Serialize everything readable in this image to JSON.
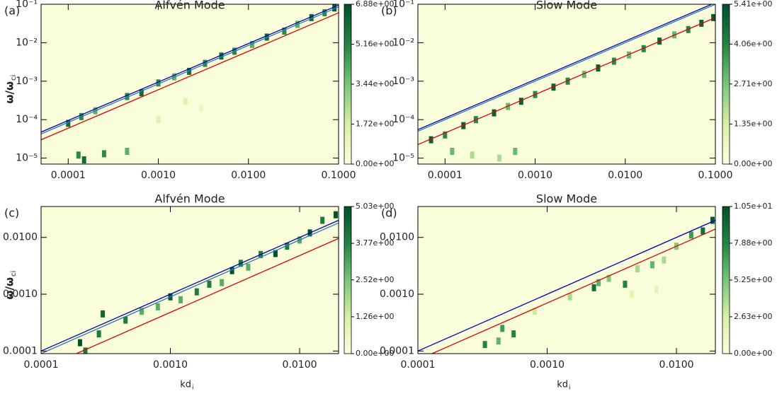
{
  "chart_data": [
    {
      "type": "heatmap",
      "panel": "(a)",
      "title": "Alfvén Mode",
      "ylabel": {
        "text": "ω/ω",
        "sub": "ci"
      },
      "xscale": "log",
      "yscale": "log",
      "xlim": [
        5e-05,
        0.1
      ],
      "ylim": [
        7e-06,
        0.1
      ],
      "xticks": [
        {
          "value": 0.0001,
          "label": "0.0001"
        },
        {
          "value": 0.001,
          "label": "0.0010"
        },
        {
          "value": 0.01,
          "label": "0.0100"
        },
        {
          "value": 0.1,
          "label": "0.1000"
        }
      ],
      "yticks": [
        {
          "value": 1e-05,
          "label": "10⁻⁵"
        },
        {
          "value": 0.0001,
          "label": "10⁻⁴"
        },
        {
          "value": 0.001,
          "label": "10⁻³"
        },
        {
          "value": 0.01,
          "label": "10⁻²"
        },
        {
          "value": 0.1,
          "label": "10⁻¹"
        }
      ],
      "clim": [
        0,
        6.88
      ],
      "cticks": [
        {
          "value": 0,
          "label": "0.00e+00"
        },
        {
          "value": 1.72,
          "label": "1.72e+00"
        },
        {
          "value": 3.44,
          "label": "3.44e+00"
        },
        {
          "value": 5.16,
          "label": "5.16e+00"
        },
        {
          "value": 6.88,
          "label": "6.88e+00"
        }
      ],
      "colormap": [
        "#ffffe0",
        "#d9f0a3",
        "#78c679",
        "#238443",
        "#00502a"
      ],
      "cells": {
        "x": [
          0.0001,
          0.00014,
          0.0002,
          0.00045,
          0.00065,
          0.001,
          0.0015,
          0.0022,
          0.0033,
          0.005,
          0.007,
          0.011,
          0.016,
          0.025,
          0.035,
          0.05,
          0.07,
          0.09,
          0.00013,
          0.00015,
          0.00025,
          0.00045,
          0.002,
          0.001,
          0.003
        ],
        "y": [
          8e-05,
          0.00012,
          0.00017,
          0.0004,
          0.0005,
          0.0009,
          0.0013,
          0.0018,
          0.0029,
          0.0045,
          0.006,
          0.009,
          0.014,
          0.02,
          0.03,
          0.045,
          0.06,
          0.08,
          1.2e-05,
          9e-06,
          1.3e-05,
          1.5e-05,
          0.0003,
          0.0001,
          0.0002
        ],
        "values": [
          6,
          5,
          4,
          5,
          6,
          5,
          4,
          6,
          5,
          6,
          5,
          4,
          6,
          5,
          4,
          6,
          5,
          6.5,
          5,
          6,
          5,
          4,
          1.5,
          1.5,
          1
        ]
      },
      "series": [
        {
          "color": "#0000c0",
          "x": [
            5e-05,
            0.1
          ],
          "values": [
            4.75e-05,
            0.095
          ]
        },
        {
          "color": "#2a7ab0",
          "x": [
            5e-05,
            0.1
          ],
          "values": [
            4.25e-05,
            0.085
          ]
        },
        {
          "color": "#e00000",
          "x": [
            5e-05,
            0.1
          ],
          "values": [
            3e-05,
            0.06
          ]
        }
      ]
    },
    {
      "type": "heatmap",
      "panel": "(b)",
      "title": "Slow Mode",
      "xscale": "log",
      "yscale": "log",
      "xlim": [
        5e-05,
        0.1
      ],
      "ylim": [
        7e-06,
        0.1
      ],
      "xticks": [
        {
          "value": 0.0001,
          "label": "0.0001"
        },
        {
          "value": 0.001,
          "label": "0.0010"
        },
        {
          "value": 0.01,
          "label": "0.0100"
        },
        {
          "value": 0.1,
          "label": "0.1000"
        }
      ],
      "yticks": [
        {
          "value": 1e-05,
          "label": "10⁻⁵"
        },
        {
          "value": 0.0001,
          "label": "10⁻⁴"
        },
        {
          "value": 0.001,
          "label": "10⁻³"
        },
        {
          "value": 0.01,
          "label": "10⁻²"
        },
        {
          "value": 0.1,
          "label": "10⁻¹"
        }
      ],
      "clim": [
        0,
        5.41
      ],
      "cticks": [
        {
          "value": 0,
          "label": "0.00e+00"
        },
        {
          "value": 1.35,
          "label": "1.35e+00"
        },
        {
          "value": 2.71,
          "label": "2.71e+00"
        },
        {
          "value": 4.06,
          "label": "4.06e+00"
        },
        {
          "value": 5.41,
          "label": "5.41e+00"
        }
      ],
      "colormap": [
        "#ffffe0",
        "#d9f0a3",
        "#78c679",
        "#238443",
        "#00502a"
      ],
      "cells": {
        "x": [
          7e-05,
          0.0001,
          0.00016,
          0.00022,
          0.00035,
          0.0005,
          0.0007,
          0.001,
          0.0016,
          0.0023,
          0.0035,
          0.005,
          0.0075,
          0.011,
          0.016,
          0.024,
          0.035,
          0.05,
          0.07,
          0.095,
          0.00012,
          0.0002,
          0.0004,
          0.0006
        ],
        "y": [
          3e-05,
          4e-05,
          7e-05,
          0.0001,
          0.00015,
          0.00022,
          0.0003,
          0.00045,
          0.0007,
          0.001,
          0.0015,
          0.0022,
          0.0033,
          0.0048,
          0.007,
          0.011,
          0.016,
          0.022,
          0.032,
          0.045,
          1.5e-05,
          1.2e-05,
          1e-05,
          1.5e-05
        ],
        "values": [
          5,
          4,
          5,
          4,
          5,
          3,
          5,
          4,
          5,
          4,
          3,
          5,
          4,
          3,
          4,
          5,
          3,
          4,
          5,
          5.2,
          3,
          2,
          2,
          3
        ]
      },
      "series": [
        {
          "color": "#0000c0",
          "x": [
            5e-05,
            0.1
          ],
          "values": [
            5.5e-05,
            0.11
          ]
        },
        {
          "color": "#2a7ab0",
          "x": [
            5e-05,
            0.1
          ],
          "values": [
            5e-05,
            0.1
          ]
        },
        {
          "color": "#e00000",
          "x": [
            5e-05,
            0.1
          ],
          "values": [
            2.25e-05,
            0.045
          ]
        }
      ]
    },
    {
      "type": "heatmap",
      "panel": "(c)",
      "title": "Alfvén Mode",
      "ylabel": {
        "text": "ω/ω",
        "sub": "ci"
      },
      "xlabel": {
        "text": "kd",
        "sub": "i"
      },
      "xscale": "log",
      "yscale": "log",
      "xlim": [
        0.0001,
        0.02
      ],
      "ylim": [
        9e-05,
        0.035
      ],
      "xticks": [
        {
          "value": 0.0001,
          "label": "0.0001"
        },
        {
          "value": 0.001,
          "label": "0.0010"
        },
        {
          "value": 0.01,
          "label": "0.0100"
        }
      ],
      "yticks": [
        {
          "value": 0.0001,
          "label": "0.0001"
        },
        {
          "value": 0.001,
          "label": "0.0010"
        },
        {
          "value": 0.01,
          "label": "0.0100"
        }
      ],
      "clim": [
        0,
        5.03
      ],
      "cticks": [
        {
          "value": 0,
          "label": "0.00e+00"
        },
        {
          "value": 1.26,
          "label": "1.26e+00"
        },
        {
          "value": 2.52,
          "label": "2.52e+00"
        },
        {
          "value": 3.77,
          "label": "3.77e+00"
        },
        {
          "value": 5.03,
          "label": "5.03e+00"
        }
      ],
      "colormap": [
        "#ffffe0",
        "#d9f0a3",
        "#78c679",
        "#238443",
        "#00502a"
      ],
      "cells": {
        "x": [
          0.0002,
          0.00022,
          0.00028,
          0.0003,
          0.00045,
          0.0006,
          0.0008,
          0.001,
          0.0012,
          0.0016,
          0.002,
          0.0025,
          0.003,
          0.0035,
          0.004,
          0.005,
          0.0065,
          0.008,
          0.01,
          0.012,
          0.015,
          0.019
        ],
        "y": [
          0.00014,
          0.0001,
          0.0002,
          0.00045,
          0.00035,
          0.0005,
          0.0006,
          0.0009,
          0.0008,
          0.0011,
          0.0015,
          0.0016,
          0.0026,
          0.0035,
          0.003,
          0.005,
          0.0052,
          0.007,
          0.009,
          0.012,
          0.02,
          0.025
        ],
        "values": [
          5,
          4,
          4,
          4.5,
          4,
          3,
          3,
          5,
          3,
          4,
          4,
          3,
          5,
          4,
          3,
          4,
          5,
          4,
          3,
          5,
          4,
          5
        ]
      },
      "series": [
        {
          "color": "#0000c0",
          "x": [
            0.0001,
            0.02
          ],
          "values": [
            0.0001,
            0.02
          ]
        },
        {
          "color": "#2a7ab0",
          "x": [
            0.0001,
            0.02
          ],
          "values": [
            9e-05,
            0.018
          ]
        },
        {
          "color": "#e00000",
          "x": [
            0.0001,
            0.02
          ],
          "values": [
            4.8e-05,
            0.0096
          ]
        }
      ]
    },
    {
      "type": "heatmap",
      "panel": "(d)",
      "title": "Slow Mode",
      "xlabel": {
        "text": "kd",
        "sub": "i"
      },
      "xscale": "log",
      "yscale": "log",
      "xlim": [
        0.0001,
        0.02
      ],
      "ylim": [
        9e-05,
        0.035
      ],
      "xticks": [
        {
          "value": 0.0001,
          "label": "0.0001"
        },
        {
          "value": 0.001,
          "label": "0.0010"
        },
        {
          "value": 0.01,
          "label": "0.0100"
        }
      ],
      "yticks": [
        {
          "value": 0.0001,
          "label": "0.0001"
        },
        {
          "value": 0.001,
          "label": "0.0010"
        },
        {
          "value": 0.01,
          "label": "0.0100"
        }
      ],
      "clim": [
        0,
        10.5
      ],
      "cticks": [
        {
          "value": 0,
          "label": "0.00e+00"
        },
        {
          "value": 2.63,
          "label": "2.63e+00"
        },
        {
          "value": 5.25,
          "label": "5.25e+00"
        },
        {
          "value": 7.88,
          "label": "7.88e+00"
        },
        {
          "value": 10.5,
          "label": "1.05e+01"
        }
      ],
      "colormap": [
        "#ffffe0",
        "#d9f0a3",
        "#78c679",
        "#238443",
        "#00502a"
      ],
      "cells": {
        "x": [
          0.00033,
          0.00045,
          0.00055,
          0.00042,
          0.0008,
          0.0015,
          0.0023,
          0.0025,
          0.003,
          0.004,
          0.005,
          0.0065,
          0.008,
          0.01,
          0.013,
          0.016,
          0.019,
          0.0045,
          0.007
        ],
        "y": [
          0.00013,
          0.00025,
          0.0002,
          0.00015,
          0.0005,
          0.0009,
          0.0013,
          0.0016,
          0.0019,
          0.0015,
          0.0028,
          0.0033,
          0.004,
          0.007,
          0.011,
          0.013,
          0.02,
          0.001,
          0.0012
        ],
        "values": [
          8,
          7,
          8,
          6,
          3,
          4,
          9,
          6,
          5,
          8,
          4,
          6,
          4,
          5,
          7,
          9,
          10,
          2,
          2
        ]
      },
      "series": [
        {
          "color": "#0000c0",
          "x": [
            0.0001,
            0.02
          ],
          "values": [
            0.0001,
            0.02
          ]
        },
        {
          "color": "#e00000",
          "x": [
            0.0001,
            0.02
          ],
          "values": [
            7e-05,
            0.014
          ]
        }
      ]
    }
  ]
}
